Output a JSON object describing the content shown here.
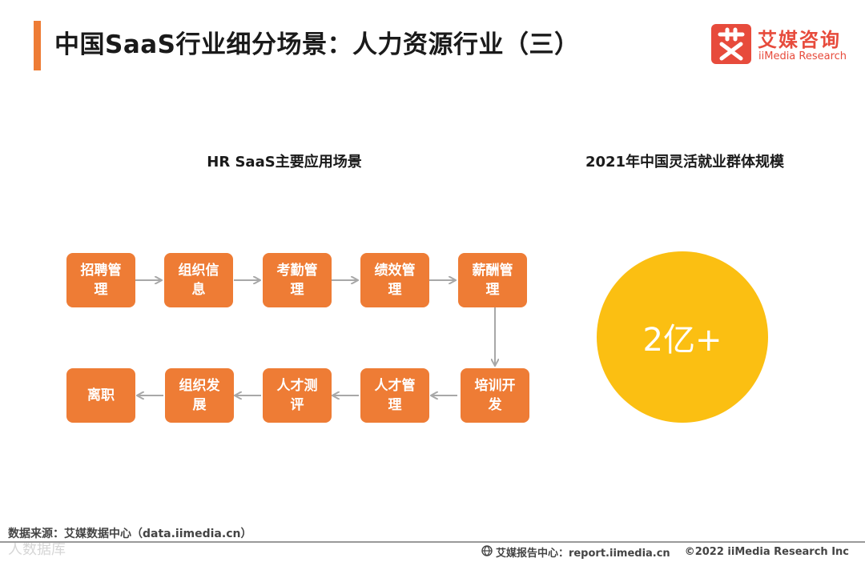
{
  "header": {
    "title": "中国SaaS行业细分场景：人力资源行业（三）",
    "logo_cn": "艾媒咨询",
    "logo_en": "iiMedia Research"
  },
  "left": {
    "title": "HR SaaS主要应用场景",
    "row1": [
      "招聘管理",
      "组织信息",
      "考勤管理",
      "绩效管理",
      "薪酬管理"
    ],
    "row2": [
      "离职",
      "组织发展",
      "人才测评",
      "人才管理",
      "培训开发"
    ]
  },
  "right": {
    "title": "2021年中国灵活就业群体规模",
    "value": "2亿+"
  },
  "footer": {
    "source": "数据来源：艾媒数据中心（data.iimedia.cn）",
    "report": "艾媒报告中心：report.iimedia.cn",
    "copyright": "©2022  iiMedia Research Inc",
    "watermark": "人数据库"
  },
  "colors": {
    "accent": "#ee7c35",
    "circle": "#fbbf12",
    "brand": "#e74b3c"
  }
}
